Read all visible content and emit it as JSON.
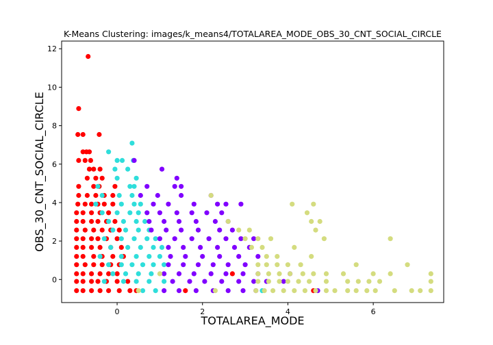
{
  "chart_data": {
    "type": "scatter",
    "title": "K-Means Clustering: images/k_means4/TOTALAREA_MODE_OBS_30_CNT_SOCIAL_CIRCLE",
    "xlabel": "TOTALAREA_MODE",
    "ylabel": "OBS_30_CNT_SOCIAL_CIRCLE",
    "xlim": [
      -1.3,
      7.65
    ],
    "ylim": [
      -1.2,
      12.4
    ],
    "xticks": [
      0,
      2,
      4,
      6
    ],
    "yticks": [
      0,
      2,
      4,
      6,
      8,
      10,
      12
    ],
    "grid": false,
    "legend": "none",
    "y_levels": [
      -0.58,
      -0.1,
      0.3,
      0.77,
      1.2,
      1.67,
      2.12,
      2.57,
      3.02,
      3.47,
      3.92,
      4.37,
      4.84,
      5.27,
      5.74,
      6.19,
      6.64,
      7.09,
      7.54,
      8.89,
      11.6
    ],
    "clusters": [
      {
        "color": "#ff0000",
        "points": [
          [
            -0.68,
            11.6
          ],
          [
            -0.9,
            8.89
          ],
          [
            -0.92,
            7.54
          ],
          [
            -0.8,
            7.54
          ],
          [
            -0.42,
            7.54
          ],
          [
            -0.8,
            6.64
          ],
          [
            -0.72,
            6.64
          ],
          [
            -0.65,
            6.64
          ],
          [
            -0.9,
            6.19
          ],
          [
            -0.75,
            6.19
          ],
          [
            -0.62,
            6.19
          ],
          [
            -0.65,
            5.74
          ],
          [
            -0.55,
            5.74
          ],
          [
            -0.4,
            5.74
          ],
          [
            -0.7,
            5.27
          ],
          [
            -0.5,
            5.27
          ],
          [
            -0.35,
            5.27
          ],
          [
            -0.9,
            4.84
          ],
          [
            -0.55,
            4.84
          ],
          [
            -0.42,
            4.84
          ],
          [
            -0.05,
            4.84
          ],
          [
            -0.9,
            4.37
          ],
          [
            -0.7,
            4.37
          ],
          [
            -0.5,
            4.37
          ],
          [
            -0.3,
            4.37
          ],
          [
            -0.1,
            4.37
          ],
          [
            -0.92,
            3.92
          ],
          [
            -0.75,
            3.92
          ],
          [
            -0.6,
            3.92
          ],
          [
            -0.45,
            3.92
          ],
          [
            -0.3,
            3.92
          ],
          [
            -0.1,
            3.92
          ],
          [
            -0.95,
            3.47
          ],
          [
            -0.8,
            3.47
          ],
          [
            -0.6,
            3.47
          ],
          [
            -0.4,
            3.47
          ],
          [
            -0.2,
            3.47
          ],
          [
            -0.95,
            3.02
          ],
          [
            -0.8,
            3.02
          ],
          [
            -0.6,
            3.02
          ],
          [
            -0.45,
            3.02
          ],
          [
            -0.25,
            3.02
          ],
          [
            -0.05,
            3.02
          ],
          [
            -0.95,
            2.57
          ],
          [
            -0.75,
            2.57
          ],
          [
            -0.55,
            2.57
          ],
          [
            -0.35,
            2.57
          ],
          [
            -0.15,
            2.57
          ],
          [
            0.05,
            2.57
          ],
          [
            -0.95,
            2.12
          ],
          [
            -0.8,
            2.12
          ],
          [
            -0.6,
            2.12
          ],
          [
            -0.45,
            2.12
          ],
          [
            -0.25,
            2.12
          ],
          [
            0.0,
            2.12
          ],
          [
            -0.95,
            1.67
          ],
          [
            -0.8,
            1.67
          ],
          [
            -0.6,
            1.67
          ],
          [
            -0.4,
            1.67
          ],
          [
            -0.15,
            1.67
          ],
          [
            0.1,
            1.67
          ],
          [
            -0.95,
            1.2
          ],
          [
            -0.8,
            1.2
          ],
          [
            -0.55,
            1.2
          ],
          [
            -0.35,
            1.2
          ],
          [
            -0.1,
            1.2
          ],
          [
            0.15,
            1.2
          ],
          [
            -0.95,
            0.77
          ],
          [
            -0.75,
            0.77
          ],
          [
            -0.55,
            0.77
          ],
          [
            -0.35,
            0.77
          ],
          [
            -0.15,
            0.77
          ],
          [
            0.05,
            0.77
          ],
          [
            -0.95,
            0.3
          ],
          [
            -0.8,
            0.3
          ],
          [
            -0.6,
            0.3
          ],
          [
            -0.4,
            0.3
          ],
          [
            -0.2,
            0.3
          ],
          [
            0.0,
            0.3
          ],
          [
            -0.95,
            -0.1
          ],
          [
            -0.8,
            -0.1
          ],
          [
            -0.6,
            -0.1
          ],
          [
            -0.45,
            -0.1
          ],
          [
            -0.25,
            -0.1
          ],
          [
            0.0,
            -0.1
          ],
          [
            0.25,
            -0.1
          ],
          [
            -0.95,
            -0.58
          ],
          [
            -0.8,
            -0.58
          ],
          [
            -0.6,
            -0.58
          ],
          [
            -0.4,
            -0.58
          ],
          [
            -0.2,
            -0.58
          ],
          [
            0.05,
            -0.58
          ],
          [
            0.3,
            -0.58
          ],
          [
            0.45,
            -0.58
          ],
          [
            1.6,
            -0.58
          ],
          [
            2.7,
            0.3
          ],
          [
            4.6,
            -0.58
          ]
        ]
      },
      {
        "color": "#2fdedb",
        "points": [
          [
            0.35,
            7.09
          ],
          [
            -0.2,
            6.64
          ],
          [
            0.0,
            6.19
          ],
          [
            0.12,
            6.19
          ],
          [
            0.38,
            6.19
          ],
          [
            -0.05,
            5.74
          ],
          [
            0.25,
            5.74
          ],
          [
            0.0,
            5.27
          ],
          [
            0.45,
            5.27
          ],
          [
            -0.45,
            4.84
          ],
          [
            0.3,
            4.84
          ],
          [
            0.4,
            4.84
          ],
          [
            -0.35,
            4.37
          ],
          [
            0.05,
            4.37
          ],
          [
            0.35,
            4.37
          ],
          [
            -0.5,
            3.92
          ],
          [
            0.1,
            3.92
          ],
          [
            0.4,
            3.92
          ],
          [
            0.55,
            3.92
          ],
          [
            -0.35,
            3.47
          ],
          [
            0.0,
            3.47
          ],
          [
            0.3,
            3.47
          ],
          [
            0.5,
            3.47
          ],
          [
            -0.2,
            3.02
          ],
          [
            0.15,
            3.02
          ],
          [
            0.45,
            3.02
          ],
          [
            0.65,
            3.02
          ],
          [
            -0.1,
            2.57
          ],
          [
            0.2,
            2.57
          ],
          [
            0.5,
            2.57
          ],
          [
            0.75,
            2.57
          ],
          [
            -0.3,
            2.12
          ],
          [
            0.1,
            2.12
          ],
          [
            0.4,
            2.12
          ],
          [
            0.7,
            2.12
          ],
          [
            0.9,
            2.12
          ],
          [
            -0.15,
            1.67
          ],
          [
            0.25,
            1.67
          ],
          [
            0.55,
            1.67
          ],
          [
            0.85,
            1.67
          ],
          [
            1.05,
            1.67
          ],
          [
            -0.4,
            1.2
          ],
          [
            0.1,
            1.2
          ],
          [
            0.45,
            1.2
          ],
          [
            0.75,
            1.2
          ],
          [
            1.0,
            1.2
          ],
          [
            -0.2,
            0.77
          ],
          [
            0.1,
            0.77
          ],
          [
            0.35,
            0.77
          ],
          [
            0.6,
            0.77
          ],
          [
            0.85,
            0.77
          ],
          [
            1.1,
            0.77
          ],
          [
            -0.1,
            0.3
          ],
          [
            0.2,
            0.3
          ],
          [
            0.5,
            0.3
          ],
          [
            0.8,
            0.3
          ],
          [
            -0.3,
            -0.1
          ],
          [
            0.15,
            -0.1
          ],
          [
            0.45,
            -0.1
          ],
          [
            0.75,
            -0.1
          ],
          [
            1.1,
            -0.1
          ],
          [
            0.6,
            -0.58
          ],
          [
            0.9,
            -0.58
          ],
          [
            3.4,
            -0.58
          ]
        ]
      },
      {
        "color": "#8000ff",
        "points": [
          [
            0.4,
            6.19
          ],
          [
            1.05,
            5.74
          ],
          [
            1.4,
            5.27
          ],
          [
            1.35,
            4.84
          ],
          [
            1.5,
            4.84
          ],
          [
            0.7,
            4.84
          ],
          [
            0.55,
            4.37
          ],
          [
            0.95,
            4.37
          ],
          [
            1.5,
            4.37
          ],
          [
            2.2,
            4.37
          ],
          [
            0.85,
            3.92
          ],
          [
            1.2,
            3.92
          ],
          [
            1.8,
            3.92
          ],
          [
            2.35,
            3.92
          ],
          [
            2.55,
            3.92
          ],
          [
            2.9,
            3.92
          ],
          [
            0.7,
            3.47
          ],
          [
            1.0,
            3.47
          ],
          [
            1.4,
            3.47
          ],
          [
            1.75,
            3.47
          ],
          [
            2.1,
            3.47
          ],
          [
            2.45,
            3.47
          ],
          [
            0.75,
            3.02
          ],
          [
            1.1,
            3.02
          ],
          [
            1.45,
            3.02
          ],
          [
            1.85,
            3.02
          ],
          [
            2.3,
            3.02
          ],
          [
            2.6,
            3.02
          ],
          [
            0.8,
            2.57
          ],
          [
            1.15,
            2.57
          ],
          [
            1.5,
            2.57
          ],
          [
            1.9,
            2.57
          ],
          [
            2.4,
            2.57
          ],
          [
            2.7,
            2.57
          ],
          [
            1.0,
            2.12
          ],
          [
            1.35,
            2.12
          ],
          [
            1.75,
            2.12
          ],
          [
            2.15,
            2.12
          ],
          [
            2.55,
            2.12
          ],
          [
            2.9,
            2.12
          ],
          [
            3.2,
            2.12
          ],
          [
            1.2,
            1.67
          ],
          [
            1.55,
            1.67
          ],
          [
            1.95,
            1.67
          ],
          [
            2.35,
            1.67
          ],
          [
            2.75,
            1.67
          ],
          [
            3.1,
            1.67
          ],
          [
            1.25,
            1.2
          ],
          [
            1.6,
            1.2
          ],
          [
            2.0,
            1.2
          ],
          [
            2.4,
            1.2
          ],
          [
            2.85,
            1.2
          ],
          [
            3.3,
            1.2
          ],
          [
            1.2,
            0.77
          ],
          [
            1.55,
            0.77
          ],
          [
            1.9,
            0.77
          ],
          [
            2.25,
            0.77
          ],
          [
            2.6,
            0.77
          ],
          [
            3.0,
            0.77
          ],
          [
            1.1,
            0.3
          ],
          [
            1.45,
            0.3
          ],
          [
            1.8,
            0.3
          ],
          [
            2.2,
            0.3
          ],
          [
            2.55,
            0.3
          ],
          [
            2.95,
            0.3
          ],
          [
            3.3,
            0.3
          ],
          [
            1.3,
            -0.1
          ],
          [
            1.7,
            -0.1
          ],
          [
            2.05,
            -0.1
          ],
          [
            2.45,
            -0.1
          ],
          [
            2.85,
            -0.1
          ],
          [
            3.2,
            -0.1
          ],
          [
            1.1,
            -0.58
          ],
          [
            1.45,
            -0.58
          ],
          [
            1.85,
            -0.58
          ],
          [
            2.25,
            -0.58
          ],
          [
            2.6,
            -0.58
          ],
          [
            2.95,
            -0.58
          ],
          [
            3.25,
            -0.58
          ],
          [
            3.5,
            -0.1
          ],
          [
            3.9,
            -0.1
          ],
          [
            4.05,
            0.3
          ],
          [
            4.7,
            -0.58
          ]
        ]
      },
      {
        "color": "#d4dc7f",
        "points": [
          [
            2.2,
            4.37
          ],
          [
            4.1,
            3.92
          ],
          [
            4.6,
            3.92
          ],
          [
            4.45,
            3.47
          ],
          [
            4.55,
            3.02
          ],
          [
            4.75,
            3.02
          ],
          [
            2.6,
            3.02
          ],
          [
            4.65,
            2.57
          ],
          [
            2.85,
            2.57
          ],
          [
            3.1,
            2.57
          ],
          [
            4.85,
            2.12
          ],
          [
            6.4,
            2.12
          ],
          [
            3.0,
            2.12
          ],
          [
            3.3,
            2.12
          ],
          [
            3.6,
            2.12
          ],
          [
            4.15,
            1.67
          ],
          [
            3.4,
            1.67
          ],
          [
            3.15,
            1.67
          ],
          [
            4.55,
            1.2
          ],
          [
            3.5,
            1.2
          ],
          [
            3.75,
            1.2
          ],
          [
            3.3,
            0.77
          ],
          [
            3.5,
            0.77
          ],
          [
            3.75,
            0.77
          ],
          [
            4.0,
            0.77
          ],
          [
            4.3,
            0.77
          ],
          [
            5.6,
            0.77
          ],
          [
            6.8,
            0.77
          ],
          [
            3.3,
            0.3
          ],
          [
            3.55,
            0.3
          ],
          [
            3.8,
            0.3
          ],
          [
            4.05,
            0.3
          ],
          [
            4.35,
            0.3
          ],
          [
            4.6,
            0.3
          ],
          [
            4.9,
            0.3
          ],
          [
            5.3,
            0.3
          ],
          [
            6.0,
            0.3
          ],
          [
            6.4,
            0.3
          ],
          [
            7.35,
            0.3
          ],
          [
            3.3,
            -0.1
          ],
          [
            3.55,
            -0.1
          ],
          [
            3.8,
            -0.1
          ],
          [
            4.0,
            -0.1
          ],
          [
            4.25,
            -0.1
          ],
          [
            4.5,
            -0.1
          ],
          [
            4.9,
            -0.1
          ],
          [
            5.4,
            -0.1
          ],
          [
            5.65,
            -0.1
          ],
          [
            5.9,
            -0.1
          ],
          [
            6.15,
            -0.1
          ],
          [
            7.35,
            -0.1
          ],
          [
            3.25,
            -0.58
          ],
          [
            3.45,
            -0.58
          ],
          [
            3.65,
            -0.58
          ],
          [
            3.9,
            -0.58
          ],
          [
            4.15,
            -0.58
          ],
          [
            4.4,
            -0.58
          ],
          [
            4.65,
            -0.58
          ],
          [
            4.9,
            -0.58
          ],
          [
            5.1,
            -0.58
          ],
          [
            5.4,
            -0.58
          ],
          [
            5.6,
            -0.58
          ],
          [
            5.85,
            -0.58
          ],
          [
            6.05,
            -0.58
          ],
          [
            6.5,
            -0.58
          ],
          [
            6.9,
            -0.58
          ],
          [
            7.1,
            -0.58
          ],
          [
            7.35,
            -0.58
          ],
          [
            0.5,
            -0.58
          ],
          [
            2.3,
            -0.58
          ],
          [
            1.0,
            0.3
          ]
        ]
      }
    ]
  }
}
